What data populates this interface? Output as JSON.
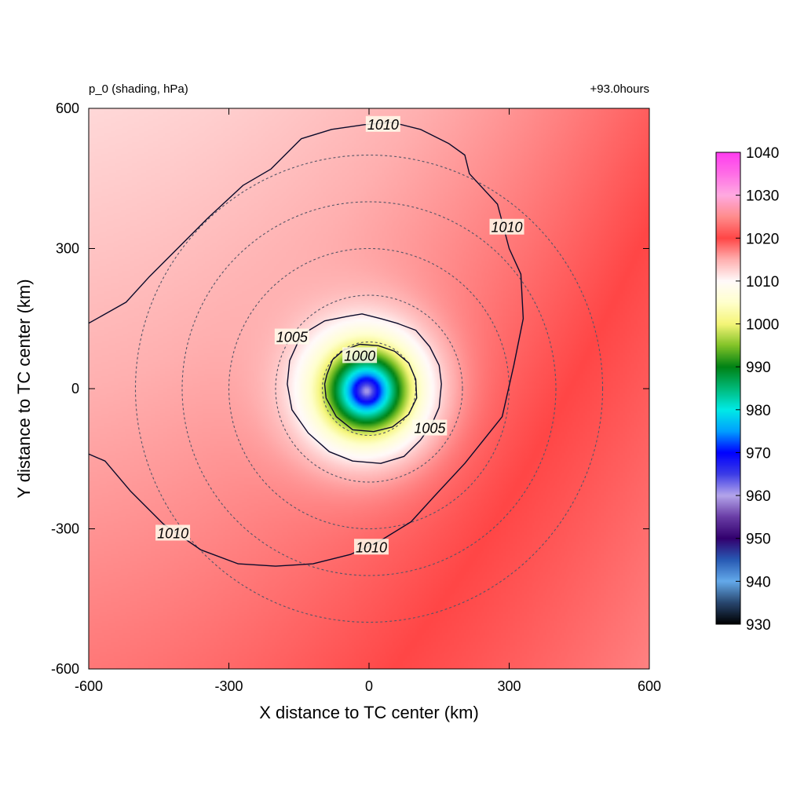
{
  "chart_data": {
    "type": "heatmap",
    "title_left": "p_0 (shading, hPa)",
    "title_right": "+93.0hours",
    "xlabel": "X distance to TC center (km)",
    "ylabel": "Y distance to TC center (km)",
    "xlim": [
      -600,
      600
    ],
    "ylim": [
      -600,
      600
    ],
    "x_ticks": [
      -600,
      -300,
      0,
      300,
      600
    ],
    "y_ticks": [
      -600,
      -300,
      0,
      300,
      600
    ],
    "colorbar": {
      "min": 930,
      "max": 1040,
      "ticks": [
        930,
        940,
        950,
        960,
        970,
        980,
        990,
        1000,
        1010,
        1020,
        1030,
        1040
      ]
    },
    "center_pressure_hpa": 960,
    "contours": [
      {
        "level": 1000,
        "labels": [
          {
            "text": "1000",
            "x": -20,
            "y": 70
          }
        ],
        "points": [
          [
            -90,
            30
          ],
          [
            -78,
            62
          ],
          [
            -55,
            82
          ],
          [
            -20,
            95
          ],
          [
            20,
            92
          ],
          [
            55,
            80
          ],
          [
            85,
            55
          ],
          [
            100,
            20
          ],
          [
            102,
            -20
          ],
          [
            85,
            -55
          ],
          [
            50,
            -82
          ],
          [
            10,
            -92
          ],
          [
            -35,
            -88
          ],
          [
            -70,
            -60
          ],
          [
            -92,
            -20
          ],
          [
            -95,
            10
          ]
        ]
      },
      {
        "level": 1005,
        "labels": [
          {
            "text": "1005",
            "x": -165,
            "y": 110
          },
          {
            "text": "1005",
            "x": 130,
            "y": -85
          }
        ],
        "points": [
          [
            -170,
            60
          ],
          [
            -145,
            115
          ],
          [
            -95,
            145
          ],
          [
            -45,
            155
          ],
          [
            -15,
            160
          ],
          [
            25,
            150
          ],
          [
            60,
            140
          ],
          [
            100,
            125
          ],
          [
            130,
            90
          ],
          [
            150,
            50
          ],
          [
            155,
            10
          ],
          [
            150,
            -40
          ],
          [
            135,
            -75
          ],
          [
            110,
            -110
          ],
          [
            75,
            -145
          ],
          [
            25,
            -160
          ],
          [
            -35,
            -155
          ],
          [
            -85,
            -135
          ],
          [
            -130,
            -95
          ],
          [
            -165,
            -45
          ],
          [
            -175,
            10
          ]
        ]
      },
      {
        "level": 1010,
        "labels": [
          {
            "text": "1010",
            "x": 30,
            "y": 565
          },
          {
            "text": "1010",
            "x": 295,
            "y": 345
          },
          {
            "text": "1010",
            "x": -420,
            "y": -310
          },
          {
            "text": "1010",
            "x": 5,
            "y": -340
          }
        ],
        "points": [
          [
            -600,
            140
          ],
          [
            -520,
            185
          ],
          [
            -470,
            240
          ],
          [
            -410,
            300
          ],
          [
            -345,
            365
          ],
          [
            -270,
            435
          ],
          [
            -210,
            470
          ],
          [
            -145,
            535
          ],
          [
            -80,
            555
          ],
          [
            -10,
            565
          ],
          [
            50,
            570
          ],
          [
            110,
            555
          ],
          [
            170,
            525
          ],
          [
            205,
            500
          ],
          [
            215,
            460
          ],
          [
            275,
            395
          ],
          [
            300,
            300
          ],
          [
            325,
            245
          ],
          [
            330,
            150
          ],
          [
            310,
            50
          ],
          [
            285,
            -60
          ],
          [
            205,
            -160
          ],
          [
            140,
            -230
          ],
          [
            90,
            -285
          ],
          [
            25,
            -325
          ],
          [
            -40,
            -355
          ],
          [
            -120,
            -375
          ],
          [
            -200,
            -380
          ],
          [
            -280,
            -375
          ],
          [
            -360,
            -345
          ],
          [
            -440,
            -290
          ],
          [
            -510,
            -220
          ],
          [
            -565,
            -155
          ],
          [
            -600,
            -140
          ]
        ]
      }
    ],
    "radius_rings_km": [
      100,
      200,
      300,
      400,
      500
    ]
  }
}
